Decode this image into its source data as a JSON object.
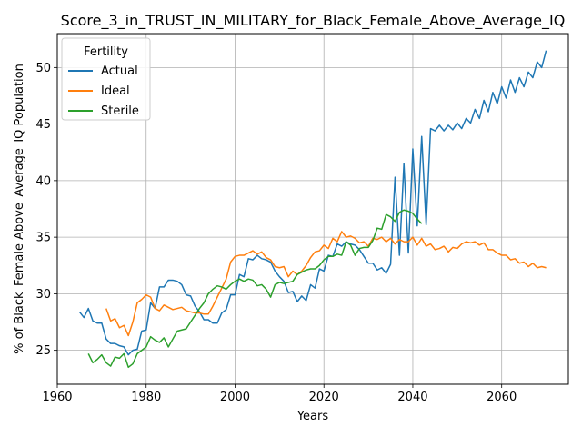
{
  "chart_data": {
    "type": "line",
    "title": "Score_3_in_TRUST_IN_MILITARY_for_Black_Female_Above_Average_IQ",
    "xlabel": "Years",
    "ylabel": "% of Black_Female Above_Average_IQ Population",
    "xlim": [
      1960,
      2075
    ],
    "ylim": [
      22,
      53
    ],
    "xticks": [
      1960,
      1980,
      2000,
      2020,
      2040,
      2060
    ],
    "yticks": [
      25,
      30,
      35,
      40,
      45,
      50
    ],
    "grid": true,
    "legend": {
      "title": "Fertility",
      "placement": "top-left"
    },
    "series": [
      {
        "name": "Actual",
        "color": "#1f77b4",
        "x": [
          1965,
          1966,
          1967,
          1968,
          1969,
          1970,
          1971,
          1972,
          1973,
          1974,
          1975,
          1976,
          1977,
          1978,
          1979,
          1980,
          1981,
          1982,
          1983,
          1984,
          1985,
          1986,
          1987,
          1988,
          1989,
          1990,
          1991,
          1992,
          1993,
          1994,
          1995,
          1996,
          1997,
          1998,
          1999,
          2000,
          2001,
          2002,
          2003,
          2004,
          2005,
          2006,
          2007,
          2008,
          2009,
          2010,
          2011,
          2012,
          2013,
          2014,
          2015,
          2016,
          2017,
          2018,
          2019,
          2020,
          2021,
          2022,
          2023,
          2024,
          2025,
          2026,
          2027,
          2028,
          2029,
          2030,
          2031,
          2032,
          2033,
          2034,
          2035,
          2036,
          2037,
          2038,
          2039,
          2040,
          2041,
          2042,
          2043,
          2044,
          2045,
          2046,
          2047,
          2048,
          2049,
          2050,
          2051,
          2052,
          2053,
          2054,
          2055,
          2056,
          2057,
          2058,
          2059,
          2060,
          2061,
          2062,
          2063,
          2064,
          2065,
          2066,
          2067,
          2068,
          2069,
          2070
        ],
        "y": [
          28.4,
          27.9,
          28.7,
          27.6,
          27.4,
          27.4,
          26.0,
          25.6,
          25.6,
          25.4,
          25.3,
          24.6,
          25.0,
          25.1,
          26.7,
          26.8,
          29.2,
          28.7,
          30.6,
          30.6,
          31.2,
          31.2,
          31.1,
          30.8,
          29.9,
          29.8,
          28.9,
          28.4,
          27.7,
          27.7,
          27.4,
          27.4,
          28.3,
          28.6,
          29.9,
          29.9,
          31.7,
          31.5,
          33.1,
          33.0,
          33.4,
          33.1,
          33.0,
          32.8,
          32.0,
          31.5,
          31.1,
          30.1,
          30.2,
          29.3,
          29.8,
          29.4,
          30.8,
          30.5,
          32.2,
          32.0,
          33.4,
          33.3,
          34.4,
          34.2,
          34.6,
          34.4,
          34.3,
          33.9,
          33.3,
          32.7,
          32.7,
          32.1,
          32.3,
          31.8,
          32.6,
          40.3,
          33.4,
          41.5,
          33.6,
          42.8,
          36.0,
          43.9,
          36.1,
          44.6,
          44.4,
          44.9,
          44.4,
          44.9,
          44.5,
          45.1,
          44.6,
          45.5,
          45.1,
          46.3,
          45.5,
          47.1,
          46.1,
          47.8,
          46.8,
          48.3,
          47.3,
          48.9,
          47.8,
          49.1,
          48.3,
          49.6,
          49.1,
          50.5,
          50.0,
          51.5
        ]
      },
      {
        "name": "Ideal",
        "color": "#ff7f0e",
        "x": [
          1971,
          1972,
          1973,
          1974,
          1975,
          1976,
          1977,
          1978,
          1979,
          1980,
          1981,
          1982,
          1983,
          1984,
          1985,
          1986,
          1987,
          1988,
          1989,
          1990,
          1991,
          1992,
          1993,
          1994,
          1995,
          1996,
          1997,
          1998,
          1999,
          2000,
          2001,
          2002,
          2003,
          2004,
          2005,
          2006,
          2007,
          2008,
          2009,
          2010,
          2011,
          2012,
          2013,
          2014,
          2015,
          2016,
          2017,
          2018,
          2019,
          2020,
          2021,
          2022,
          2023,
          2024,
          2025,
          2026,
          2027,
          2028,
          2029,
          2030,
          2031,
          2032,
          2033,
          2034,
          2035,
          2036,
          2037,
          2038,
          2039,
          2040,
          2041,
          2042,
          2043,
          2044,
          2045,
          2046,
          2047,
          2048,
          2049,
          2050,
          2051,
          2052,
          2053,
          2054,
          2055,
          2056,
          2057,
          2058,
          2059,
          2060,
          2061,
          2062,
          2063,
          2064,
          2065,
          2066,
          2067,
          2068,
          2069,
          2070
        ],
        "y": [
          28.7,
          27.6,
          27.8,
          27.0,
          27.2,
          26.3,
          27.5,
          29.2,
          29.5,
          29.9,
          29.7,
          28.7,
          28.5,
          29.0,
          28.8,
          28.6,
          28.7,
          28.8,
          28.5,
          28.4,
          28.3,
          28.3,
          28.2,
          28.2,
          28.9,
          29.7,
          30.5,
          31.3,
          32.8,
          33.3,
          33.4,
          33.4,
          33.6,
          33.8,
          33.5,
          33.7,
          33.2,
          33.0,
          32.4,
          32.3,
          32.4,
          31.5,
          32.0,
          31.7,
          32.0,
          32.5,
          33.2,
          33.7,
          33.8,
          34.3,
          34.0,
          34.9,
          34.6,
          35.5,
          35.0,
          35.1,
          34.9,
          34.5,
          34.6,
          34.2,
          34.9,
          34.8,
          35.0,
          34.6,
          34.9,
          34.4,
          34.8,
          34.6,
          34.6,
          35.0,
          34.3,
          34.9,
          34.2,
          34.4,
          33.9,
          34.0,
          34.2,
          33.7,
          34.1,
          34.0,
          34.4,
          34.6,
          34.5,
          34.6,
          34.3,
          34.5,
          33.9,
          33.9,
          33.6,
          33.4,
          33.4,
          33.0,
          33.1,
          32.7,
          32.8,
          32.4,
          32.7,
          32.3,
          32.4,
          32.3
        ]
      },
      {
        "name": "Sterile",
        "color": "#2ca02c",
        "x": [
          1967,
          1968,
          1969,
          1970,
          1971,
          1972,
          1973,
          1974,
          1975,
          1976,
          1977,
          1978,
          1979,
          1980,
          1981,
          1982,
          1983,
          1984,
          1985,
          1986,
          1987,
          1988,
          1989,
          1990,
          1991,
          1992,
          1993,
          1994,
          1995,
          1996,
          1997,
          1998,
          1999,
          2000,
          2001,
          2002,
          2003,
          2004,
          2005,
          2006,
          2007,
          2008,
          2009,
          2010,
          2011,
          2012,
          2013,
          2014,
          2015,
          2016,
          2017,
          2018,
          2019,
          2020,
          2021,
          2022,
          2023,
          2024,
          2025,
          2026,
          2027,
          2028,
          2029,
          2030,
          2031,
          2032,
          2033,
          2034,
          2035,
          2036,
          2037,
          2038,
          2039,
          2040,
          2041,
          2042
        ],
        "y": [
          24.7,
          23.9,
          24.2,
          24.6,
          23.9,
          23.6,
          24.4,
          24.3,
          24.7,
          23.5,
          23.8,
          24.7,
          25.0,
          25.3,
          26.2,
          25.9,
          25.7,
          26.1,
          25.3,
          26.0,
          26.7,
          26.8,
          26.9,
          27.5,
          28.1,
          28.7,
          29.2,
          30.0,
          30.4,
          30.7,
          30.6,
          30.4,
          30.8,
          31.1,
          31.3,
          31.1,
          31.3,
          31.2,
          30.7,
          30.8,
          30.4,
          29.7,
          30.8,
          31.0,
          30.9,
          31.0,
          31.1,
          31.7,
          31.9,
          32.1,
          32.2,
          32.2,
          32.5,
          33.0,
          33.3,
          33.3,
          33.5,
          33.4,
          34.6,
          34.3,
          33.4,
          34.0,
          34.1,
          34.1,
          34.7,
          35.8,
          35.7,
          37.0,
          36.8,
          36.4,
          37.2,
          37.4,
          37.3,
          37.1,
          36.6,
          36.2
        ]
      }
    ]
  }
}
